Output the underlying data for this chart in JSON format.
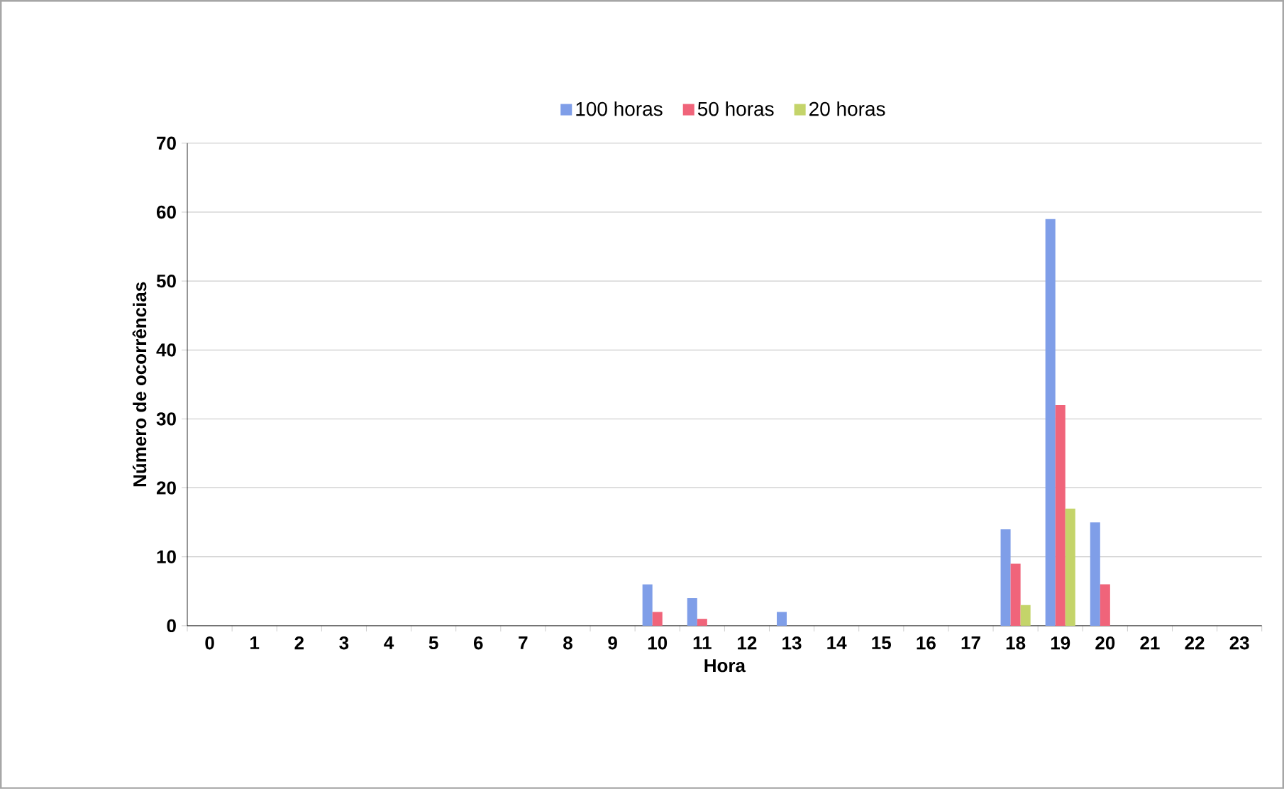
{
  "chart_data": {
    "type": "bar",
    "xlabel": "Hora",
    "ylabel": "Número de ocorrências",
    "categories": [
      "0",
      "1",
      "2",
      "3",
      "4",
      "5",
      "6",
      "7",
      "8",
      "9",
      "10",
      "11",
      "12",
      "13",
      "14",
      "15",
      "16",
      "17",
      "18",
      "19",
      "20",
      "21",
      "22",
      "23"
    ],
    "series": [
      {
        "name": "100 horas",
        "color": "#7f9ee8",
        "values": [
          0,
          0,
          0,
          0,
          0,
          0,
          0,
          0,
          0,
          0,
          6,
          4,
          0,
          2,
          0,
          0,
          0,
          0,
          14,
          59,
          15,
          0,
          0,
          0
        ]
      },
      {
        "name": "50 horas",
        "color": "#f0647a",
        "values": [
          0,
          0,
          0,
          0,
          0,
          0,
          0,
          0,
          0,
          0,
          2,
          1,
          0,
          0,
          0,
          0,
          0,
          0,
          9,
          32,
          6,
          0,
          0,
          0
        ]
      },
      {
        "name": "20 horas",
        "color": "#c4d46a",
        "values": [
          0,
          0,
          0,
          0,
          0,
          0,
          0,
          0,
          0,
          0,
          0,
          0,
          0,
          0,
          0,
          0,
          0,
          0,
          3,
          17,
          0,
          0,
          0,
          0
        ]
      }
    ],
    "ylim": [
      0,
      70
    ],
    "yticks": [
      0,
      10,
      20,
      30,
      40,
      50,
      60,
      70
    ],
    "grid": "y",
    "legend": "top"
  }
}
